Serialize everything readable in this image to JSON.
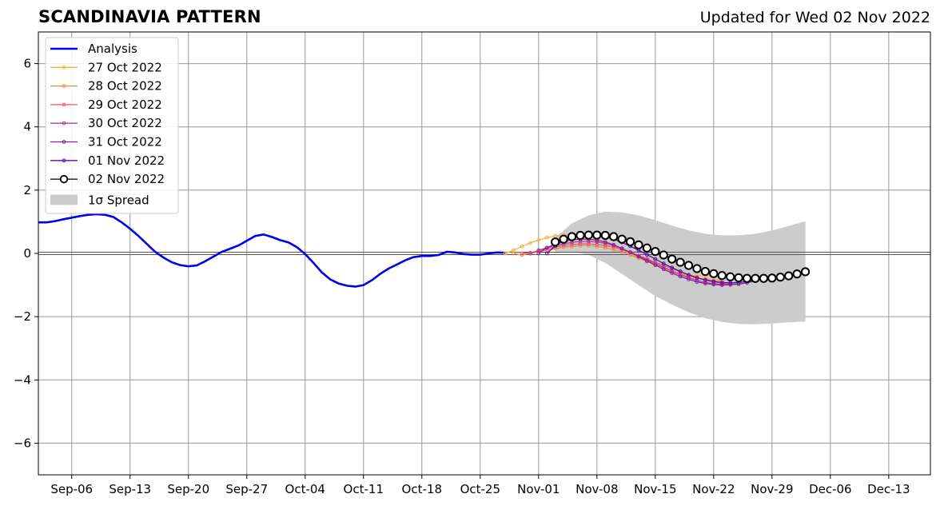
{
  "header": {
    "title": "SCANDINAVIA PATTERN",
    "subtitle": "Updated for Wed 02 Nov 2022"
  },
  "chart_data": {
    "type": "line",
    "title": "SCANDINAVIA PATTERN",
    "subtitle": "Updated for Wed 02 Nov 2022",
    "xlabel": "",
    "ylabel": "",
    "x_type": "date",
    "xlim": [
      "2022-09-02",
      "2022-12-18"
    ],
    "ylim": [
      -7,
      7
    ],
    "x_ticks": [
      "2022-09-06",
      "2022-09-13",
      "2022-09-20",
      "2022-09-27",
      "2022-10-04",
      "2022-10-11",
      "2022-10-18",
      "2022-10-25",
      "2022-11-01",
      "2022-11-08",
      "2022-11-15",
      "2022-11-22",
      "2022-11-29",
      "2022-12-06",
      "2022-12-13"
    ],
    "x_tick_labels": [
      "Sep-06",
      "Sep-13",
      "Sep-20",
      "Sep-27",
      "Oct-04",
      "Oct-11",
      "Oct-18",
      "Oct-25",
      "Nov-01",
      "Nov-08",
      "Nov-15",
      "Nov-22",
      "Nov-29",
      "Dec-06",
      "Dec-13"
    ],
    "y_ticks": [
      -6,
      -4,
      -2,
      0,
      2,
      4,
      6
    ],
    "y_tick_labels": [
      "−6",
      "−4",
      "−2",
      "0",
      "2",
      "4",
      "6"
    ],
    "grid": true,
    "zero_line": true,
    "legend_position": "top-left",
    "legend": {
      "analysis": "Analysis",
      "f1": "27 Oct 2022",
      "f2": "28 Oct 2022",
      "f3": "29 Oct 2022",
      "f4": "30 Oct 2022",
      "f5": "31 Oct 2022",
      "f6": "01 Nov 2022",
      "f7": "02 Nov 2022",
      "spread": "1σ Spread"
    },
    "spread": {
      "name": "1σ Spread",
      "color": "#cccccc",
      "x": [
        "2022-11-03",
        "2022-11-05",
        "2022-11-07",
        "2022-11-09",
        "2022-11-11",
        "2022-11-13",
        "2022-11-15",
        "2022-11-17",
        "2022-11-19",
        "2022-11-21",
        "2022-11-23",
        "2022-11-25",
        "2022-11-27",
        "2022-11-29",
        "2022-12-01",
        "2022-12-03"
      ],
      "upper": [
        0.5,
        0.95,
        1.2,
        1.32,
        1.3,
        1.2,
        1.05,
        0.88,
        0.73,
        0.62,
        0.57,
        0.57,
        0.62,
        0.72,
        0.87,
        1.02
      ],
      "lower": [
        0.0,
        0.05,
        -0.05,
        -0.3,
        -0.65,
        -1.0,
        -1.35,
        -1.62,
        -1.86,
        -2.05,
        -2.17,
        -2.23,
        -2.24,
        -2.22,
        -2.18,
        -2.15
      ]
    },
    "series": [
      {
        "name": "Analysis",
        "color": "#0000ee",
        "x_start": "2022-09-02",
        "values": [
          0.98,
          0.98,
          1.02,
          1.08,
          1.13,
          1.18,
          1.22,
          1.24,
          1.22,
          1.15,
          0.98,
          0.78,
          0.55,
          0.3,
          0.05,
          -0.13,
          -0.28,
          -0.37,
          -0.41,
          -0.38,
          -0.25,
          -0.1,
          0.05,
          0.15,
          0.25,
          0.4,
          0.55,
          0.6,
          0.52,
          0.42,
          0.35,
          0.2,
          -0.02,
          -0.3,
          -0.6,
          -0.82,
          -0.95,
          -1.02,
          -1.05,
          -1.0,
          -0.85,
          -0.65,
          -0.48,
          -0.35,
          -0.22,
          -0.12,
          -0.08,
          -0.08,
          -0.05,
          0.05,
          0.03,
          -0.02,
          -0.04,
          -0.04,
          0.0,
          0.03,
          0.02
        ]
      },
      {
        "name": "27 Oct 2022",
        "color": "#f7b33d",
        "x_start": "2022-10-28",
        "values": [
          0.0,
          0.1,
          0.22,
          0.33,
          0.42,
          0.5,
          0.55,
          0.58,
          0.6,
          0.58,
          0.53,
          0.45,
          0.36,
          0.25,
          0.12,
          0.0,
          -0.13,
          -0.26,
          -0.38,
          -0.49,
          -0.58,
          -0.64,
          -0.68,
          -0.7,
          -0.7,
          -0.7,
          -0.68,
          -0.66
        ]
      },
      {
        "name": "28 Oct 2022",
        "color": "#f28a4a",
        "x_start": "2022-10-29",
        "values": [
          0.0,
          -0.05,
          0.0,
          0.05,
          0.1,
          0.15,
          0.2,
          0.22,
          0.25,
          0.25,
          0.22,
          0.18,
          0.12,
          0.05,
          -0.05,
          -0.15,
          -0.25,
          -0.35,
          -0.45,
          -0.55,
          -0.65,
          -0.72,
          -0.78,
          -0.82,
          -0.85,
          -0.86
        ]
      },
      {
        "name": "29 Oct 2022",
        "color": "#dd5e6e",
        "x_start": "2022-10-30",
        "values": [
          0.0,
          0.02,
          0.08,
          0.15,
          0.2,
          0.25,
          0.28,
          0.3,
          0.3,
          0.28,
          0.25,
          0.2,
          0.12,
          0.03,
          -0.07,
          -0.17,
          -0.28,
          -0.38,
          -0.48,
          -0.58,
          -0.68,
          -0.76,
          -0.84,
          -0.9,
          -0.94,
          -0.96
        ]
      },
      {
        "name": "30 Oct 2022",
        "color": "#b33f8e",
        "x_start": "2022-10-31",
        "values": [
          0.0,
          0.1,
          0.18,
          0.25,
          0.3,
          0.35,
          0.38,
          0.38,
          0.36,
          0.32,
          0.25,
          0.15,
          0.04,
          -0.08,
          -0.2,
          -0.32,
          -0.44,
          -0.56,
          -0.67,
          -0.77,
          -0.85,
          -0.92,
          -0.96,
          -0.98,
          -0.98,
          -0.96
        ]
      },
      {
        "name": "31 Oct 2022",
        "color": "#8a1fa5",
        "x_start": "2022-11-01",
        "values": [
          0.0,
          0.18,
          0.3,
          0.38,
          0.43,
          0.45,
          0.45,
          0.42,
          0.36,
          0.27,
          0.16,
          0.03,
          -0.1,
          -0.24,
          -0.37,
          -0.5,
          -0.62,
          -0.73,
          -0.82,
          -0.9,
          -0.95,
          -0.98,
          -1.0,
          -0.99,
          -0.97,
          -0.93,
          -0.87
        ]
      },
      {
        "name": "01 Nov 2022",
        "color": "#5c0b9c",
        "x_start": "2022-11-02",
        "values": [
          0.0,
          0.24,
          0.4,
          0.5,
          0.55,
          0.57,
          0.56,
          0.52,
          0.45,
          0.35,
          0.23,
          0.1,
          -0.04,
          -0.18,
          -0.32,
          -0.45,
          -0.57,
          -0.68,
          -0.77,
          -0.84,
          -0.89,
          -0.92,
          -0.93,
          -0.92,
          -0.89,
          -0.84,
          -0.78,
          -0.7
        ]
      },
      {
        "name": "02 Nov 2022",
        "color": "#000000",
        "x_start": "2022-11-03",
        "values": [
          0.36,
          0.45,
          0.53,
          0.57,
          0.58,
          0.58,
          0.57,
          0.53,
          0.45,
          0.37,
          0.27,
          0.17,
          0.06,
          -0.05,
          -0.18,
          -0.28,
          -0.38,
          -0.48,
          -0.57,
          -0.64,
          -0.7,
          -0.74,
          -0.77,
          -0.79,
          -0.79,
          -0.79,
          -0.78,
          -0.75,
          -0.71,
          -0.65,
          -0.58
        ]
      }
    ]
  }
}
